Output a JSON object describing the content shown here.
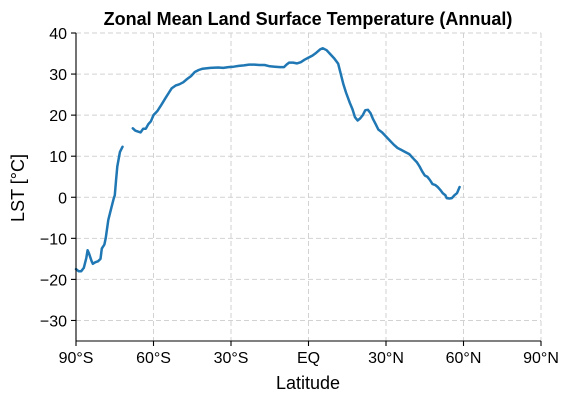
{
  "chart_data": {
    "type": "line",
    "title": "Zonal Mean Land Surface Temperature (Annual)",
    "xlabel": "Latitude",
    "ylabel": "LST [°C]",
    "xlim": [
      -90,
      90
    ],
    "ylim": [
      -35,
      40
    ],
    "x_ticks": [
      {
        "value": -90,
        "label": "90°S"
      },
      {
        "value": -60,
        "label": "60°S"
      },
      {
        "value": -30,
        "label": "30°S"
      },
      {
        "value": 0,
        "label": "EQ"
      },
      {
        "value": 30,
        "label": "30°N"
      },
      {
        "value": 60,
        "label": "60°N"
      },
      {
        "value": 90,
        "label": "90°N"
      }
    ],
    "y_ticks": [
      {
        "value": -30,
        "label": "−30"
      },
      {
        "value": -20,
        "label": "−20"
      },
      {
        "value": -10,
        "label": "−10"
      },
      {
        "value": 0,
        "label": "0"
      },
      {
        "value": 10,
        "label": "10"
      },
      {
        "value": 20,
        "label": "20"
      },
      {
        "value": 30,
        "label": "30"
      },
      {
        "value": 40,
        "label": "40"
      }
    ],
    "grid": true,
    "series": [
      {
        "color": "#1f77b4",
        "segments": [
          [
            [
              -90,
              -17.5
            ],
            [
              -89,
              -18.0
            ],
            [
              -88,
              -18.0
            ],
            [
              -87,
              -17.2
            ],
            [
              -86,
              -14.8
            ],
            [
              -85.5,
              -12.9
            ],
            [
              -85,
              -13.6
            ],
            [
              -84,
              -15.5
            ],
            [
              -83.5,
              -16.2
            ],
            [
              -82.5,
              -15.8
            ],
            [
              -81.5,
              -15.6
            ],
            [
              -80.5,
              -15.0
            ],
            [
              -80,
              -12.5
            ],
            [
              -79,
              -11.5
            ],
            [
              -78.5,
              -10.0
            ],
            [
              -77.5,
              -5.5
            ],
            [
              -76.5,
              -3.0
            ],
            [
              -75.5,
              -0.5
            ],
            [
              -75,
              0.5
            ],
            [
              -74.5,
              4.0
            ],
            [
              -74,
              7.5
            ],
            [
              -73,
              11.0
            ],
            [
              -72,
              12.3
            ]
          ],
          [
            [
              -68,
              16.8
            ],
            [
              -67,
              16.2
            ],
            [
              -66,
              16.0
            ],
            [
              -65,
              15.8
            ],
            [
              -64,
              16.7
            ],
            [
              -63,
              16.7
            ],
            [
              -62,
              17.8
            ],
            [
              -61,
              18.5
            ],
            [
              -60,
              20.0
            ],
            [
              -58.5,
              21.0
            ],
            [
              -57,
              22.5
            ],
            [
              -55.5,
              24.0
            ],
            [
              -54,
              25.5
            ],
            [
              -53,
              26.5
            ],
            [
              -51.5,
              27.2
            ],
            [
              -50,
              27.5
            ],
            [
              -48.5,
              28.0
            ],
            [
              -47,
              28.8
            ],
            [
              -45.5,
              29.5
            ],
            [
              -44,
              30.5
            ],
            [
              -42.5,
              31.0
            ],
            [
              -41,
              31.3
            ],
            [
              -38,
              31.5
            ],
            [
              -35,
              31.6
            ],
            [
              -33,
              31.5
            ],
            [
              -31,
              31.7
            ],
            [
              -29,
              31.8
            ],
            [
              -27,
              32.0
            ],
            [
              -25,
              32.1
            ],
            [
              -23,
              32.3
            ],
            [
              -21,
              32.3
            ],
            [
              -19,
              32.2
            ],
            [
              -17,
              32.2
            ],
            [
              -15,
              31.9
            ],
            [
              -13,
              31.8
            ],
            [
              -11,
              31.7
            ],
            [
              -9.5,
              31.7
            ],
            [
              -8.5,
              32.3
            ],
            [
              -7.5,
              32.8
            ],
            [
              -6,
              32.8
            ],
            [
              -4.5,
              32.6
            ],
            [
              -3,
              32.9
            ],
            [
              -1.5,
              33.5
            ],
            [
              0,
              34.0
            ],
            [
              1.5,
              34.5
            ],
            [
              3,
              35.2
            ],
            [
              4.5,
              36.0
            ],
            [
              5.5,
              36.3
            ],
            [
              7,
              35.8
            ],
            [
              8.5,
              34.8
            ],
            [
              10,
              33.8
            ],
            [
              11.5,
              32.5
            ],
            [
              12.5,
              30.0
            ],
            [
              13.5,
              27.5
            ],
            [
              14.5,
              25.5
            ],
            [
              16,
              23.0
            ],
            [
              17,
              21.5
            ],
            [
              18,
              19.5
            ],
            [
              19,
              18.7
            ],
            [
              20,
              19.2
            ],
            [
              21,
              20.0
            ],
            [
              22,
              21.2
            ],
            [
              23,
              21.3
            ],
            [
              24,
              20.5
            ],
            [
              25,
              19.0
            ],
            [
              26,
              17.8
            ],
            [
              27,
              16.5
            ],
            [
              28.5,
              15.8
            ],
            [
              30,
              14.8
            ],
            [
              31.5,
              13.8
            ],
            [
              33,
              12.8
            ],
            [
              34.5,
              12.0
            ],
            [
              36,
              11.5
            ],
            [
              37.5,
              11.0
            ],
            [
              39,
              10.5
            ],
            [
              40.5,
              9.5
            ],
            [
              42,
              8.5
            ],
            [
              43,
              7.5
            ],
            [
              44,
              6.3
            ],
            [
              45,
              5.3
            ],
            [
              46,
              5.0
            ],
            [
              47,
              4.2
            ],
            [
              48,
              3.2
            ],
            [
              49,
              3.0
            ],
            [
              50,
              2.5
            ],
            [
              51,
              1.8
            ],
            [
              52,
              1.0
            ],
            [
              53,
              0.5
            ],
            [
              53.5,
              -0.2
            ],
            [
              54.5,
              -0.3
            ],
            [
              55.5,
              -0.2
            ],
            [
              56.5,
              0.5
            ],
            [
              57.5,
              1.0
            ],
            [
              58.5,
              2.5
            ]
          ]
        ]
      }
    ]
  }
}
